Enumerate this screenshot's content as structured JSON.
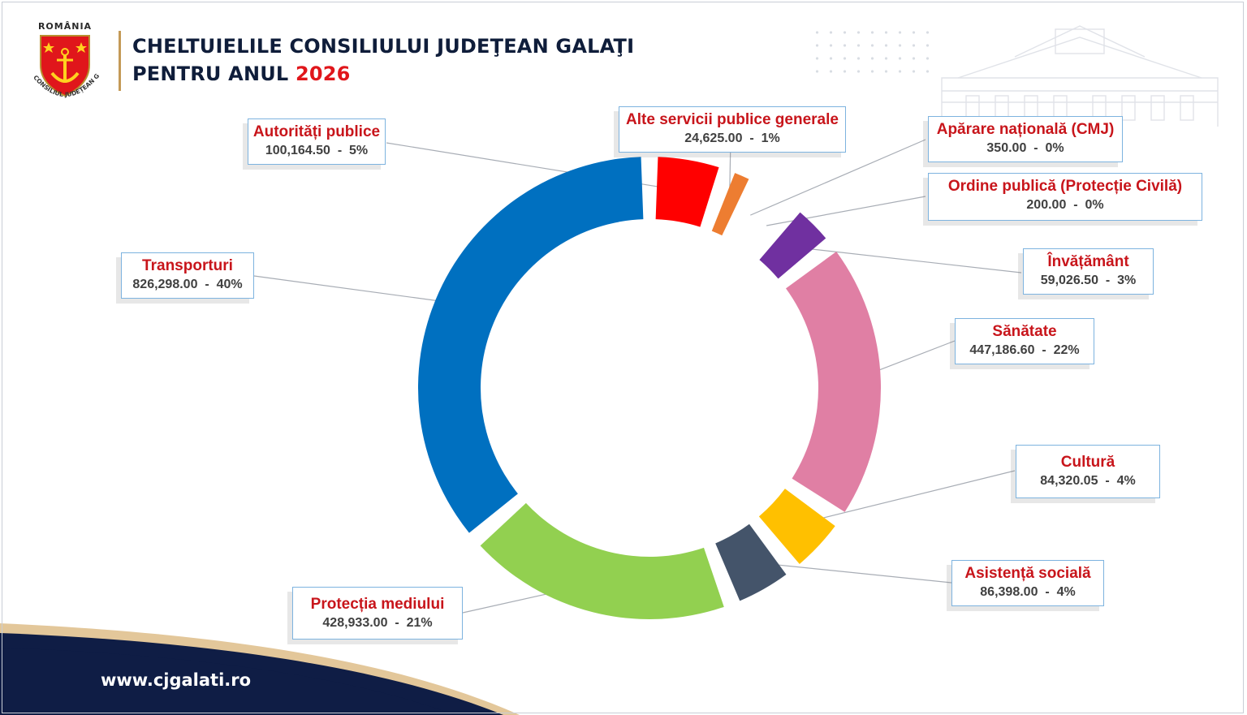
{
  "header": {
    "country": "ROMÂNIA",
    "institution": "CONSILIUL JUDEȚEAN GALAȚI",
    "title_line1": "CHELTUIELILE CONSILIULUI JUDEŢEAN GALAŢI",
    "title_line2_prefix": "PENTRU ANUL",
    "title_year": "2026"
  },
  "footer": {
    "website": "www.cjgalati.ro"
  },
  "colors": {
    "navy": "#0f1d3a",
    "accent_red": "#e0161b",
    "label_red": "#c8151b",
    "gold": "#c49a57"
  },
  "chart_data": {
    "type": "pie",
    "style": "donut",
    "slices": [
      {
        "label": "Autorități publice",
        "value": 100164.5,
        "value_text": "100,164.50",
        "percent_text": "5%",
        "color": "#ff0000"
      },
      {
        "label": "Alte servicii publice generale",
        "value": 24625.0,
        "value_text": "24,625.00",
        "percent_text": "1%",
        "color": "#ed7d31"
      },
      {
        "label": "Apărare națională (CMJ)",
        "value": 350.0,
        "value_text": "350.00",
        "percent_text": "0%",
        "color": "#4472c4"
      },
      {
        "label": "Ordine publică (Protecție Civilă)",
        "value": 200.0,
        "value_text": "200.00",
        "percent_text": "0%",
        "color": "#ffc000"
      },
      {
        "label": "Învățământ",
        "value": 59026.5,
        "value_text": "59,026.50",
        "percent_text": "3%",
        "color": "#7030a0"
      },
      {
        "label": "Sănătate",
        "value": 447186.6,
        "value_text": "447,186.60",
        "percent_text": "22%",
        "color": "#e07fa4"
      },
      {
        "label": "Cultură",
        "value": 84320.05,
        "value_text": "84,320.05",
        "percent_text": "4%",
        "color": "#ffc000"
      },
      {
        "label": "Asistență socială",
        "value": 86398.0,
        "value_text": "86,398.00",
        "percent_text": "4%",
        "color": "#44546a"
      },
      {
        "label": "Protecția mediului",
        "value": 428933.0,
        "value_text": "428,933.00",
        "percent_text": "21%",
        "color": "#92d050"
      },
      {
        "label": "Transporturi",
        "value": 826298.0,
        "value_text": "826,298.00",
        "percent_text": "40%",
        "color": "#0070c0"
      }
    ]
  }
}
